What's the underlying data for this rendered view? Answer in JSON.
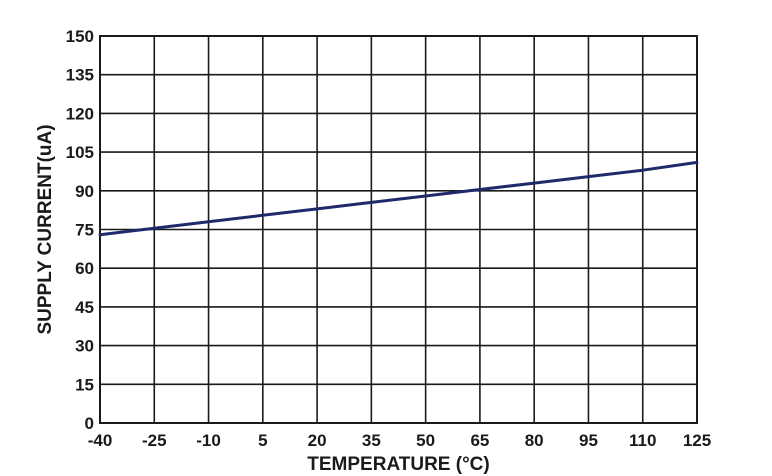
{
  "chart_data": {
    "type": "line",
    "xlabel": "TEMPERATURE (°C)",
    "ylabel": "SUPPLY CURRENT(uA)",
    "x_ticks": [
      "-40",
      "-25",
      "-10",
      "5",
      "20",
      "35",
      "50",
      "65",
      "80",
      "95",
      "110",
      "125"
    ],
    "y_ticks": [
      "0",
      "15",
      "30",
      "45",
      "60",
      "75",
      "90",
      "105",
      "120",
      "135",
      "150"
    ],
    "xlim": [
      -40,
      125
    ],
    "ylim": [
      0,
      150
    ],
    "grid": true,
    "series": [
      {
        "color": "#1f2a6b",
        "x": [
          -40,
          -25,
          -10,
          5,
          20,
          35,
          50,
          65,
          80,
          95,
          110,
          125
        ],
        "y": [
          73,
          75.5,
          78,
          80.5,
          83,
          85.5,
          88,
          90.5,
          93,
          95.5,
          98,
          101
        ]
      }
    ]
  }
}
